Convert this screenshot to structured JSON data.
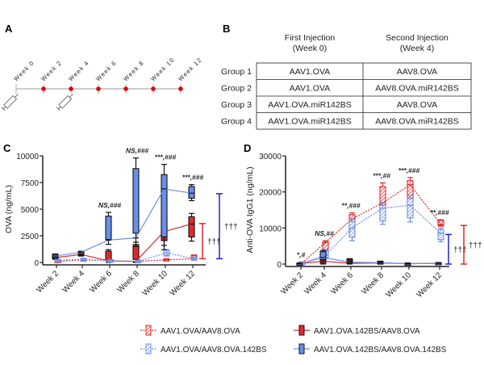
{
  "panels": {
    "a": "A",
    "b": "B",
    "c": "C",
    "d": "D"
  },
  "timeline": {
    "weeks": [
      "Week 0",
      "Week 2",
      "Week 4",
      "Week 6",
      "Week 8",
      "Week 10",
      "Week 12"
    ],
    "injection_weeks": [
      "Week 0",
      "Week 4"
    ],
    "icons": {
      "injection": "syringe-icon",
      "sample": "red-dot"
    }
  },
  "table": {
    "headers": [
      "",
      "First Injection\n(Week 0)",
      "Second Injection\n(Week 4)"
    ],
    "header_lines": [
      [
        "First Injection",
        "(Week 0)"
      ],
      [
        "Second Injection",
        "(Week 4)"
      ]
    ],
    "rows": [
      [
        "Group 1",
        "AAV1.OVA",
        "AAV8.OVA"
      ],
      [
        "Group 2",
        "AAV1.OVA",
        "AAV8.OVA.miR142BS"
      ],
      [
        "Group 3",
        "AAV1.OVA.miR142BS",
        "AAV8.OVA"
      ],
      [
        "Group 4",
        "AAV1.OVA.miR142BS",
        "AAV8.OVA.miR142BS"
      ]
    ]
  },
  "legend": [
    {
      "label": "AAV1.OVA/AAV8.OVA",
      "color": "#e0292e",
      "style": "dotted",
      "box": "hatched"
    },
    {
      "label": "AAV1.OVA.142BS/AAV8.OVA",
      "color": "#e0292e",
      "style": "solid",
      "box": "filled-black-edge"
    },
    {
      "label": "AAV1.OVA/AAV8.OVA.142BS",
      "color": "#6b8fe8",
      "style": "dotted",
      "box": "hatched"
    },
    {
      "label": "AAV1.OVA.142BS/AAV8.OVA.142BS",
      "color": "#6b8fe8",
      "style": "solid",
      "box": "filled-black-edge"
    }
  ],
  "colors": {
    "red": "#e0292e",
    "blue": "#6b8fe8",
    "dark_blue": "#2323c8",
    "black": "#111111"
  },
  "chart_data": [
    {
      "type": "line",
      "panel": "C",
      "ylabel": "OVA (ng/mL)",
      "categories": [
        "Week 2",
        "Week 4",
        "Week 6",
        "Week 8",
        "Week 10",
        "Week 12"
      ],
      "ylim": [
        0,
        10000
      ],
      "yticks": [
        "0",
        "2500",
        "5000",
        "7500",
        "10000"
      ],
      "series": [
        {
          "legend": 0,
          "values": [
            100,
            250,
            150,
            100,
            250,
            350
          ],
          "ranges": [
            [
              0,
              200
            ],
            [
              150,
              350
            ],
            [
              50,
              250
            ],
            [
              0,
              200
            ],
            [
              150,
              350
            ],
            [
              200,
              700
            ]
          ]
        },
        {
          "legend": 1,
          "values": [
            450,
            750,
            150,
            100,
            2900,
            3600
          ],
          "ranges": [
            [
              300,
              600
            ],
            [
              600,
              900
            ],
            [
              0,
              1200
            ],
            [
              0,
              1900
            ],
            [
              1600,
              4600
            ],
            [
              2000,
              4600
            ]
          ]
        },
        {
          "legend": 2,
          "values": [
            200,
            300,
            150,
            100,
            900,
            350
          ],
          "ranges": [
            [
              100,
              300
            ],
            [
              200,
              400
            ],
            [
              50,
              250
            ],
            [
              0,
              200
            ],
            [
              600,
              1200
            ],
            [
              200,
              500
            ]
          ]
        },
        {
          "legend": 3,
          "values": [
            600,
            950,
            2100,
            2300,
            6900,
            6500
          ],
          "ranges": [
            [
              400,
              800
            ],
            [
              750,
              1050
            ],
            [
              1700,
              4700
            ],
            [
              1500,
              9800
            ],
            [
              1200,
              9200
            ],
            [
              5800,
              7300
            ]
          ]
        }
      ],
      "annotations": [
        {
          "category": "Week 6",
          "text": "NS,###"
        },
        {
          "category": "Week 8",
          "text": "NS,###"
        },
        {
          "category": "Week 10",
          "text": "***,###"
        },
        {
          "category": "Week 12",
          "text": "***,###"
        }
      ],
      "brackets": [
        {
          "color": "red",
          "range": [
            350,
            3650
          ],
          "text": "†††"
        },
        {
          "color": "dark_blue",
          "range": [
            350,
            6450
          ],
          "text": "†††"
        }
      ]
    },
    {
      "type": "line",
      "panel": "D",
      "ylabel": "Anti-OVA IgG1 (ng/mL)",
      "categories": [
        "Week 2",
        "Week 4",
        "Week 6",
        "Week 8",
        "Week 10",
        "Week 12"
      ],
      "ylim": [
        0,
        30000
      ],
      "yticks": [
        "0",
        "10000",
        "20000",
        "30000"
      ],
      "series": [
        {
          "legend": 0,
          "values": [
            300,
            6000,
            12500,
            17000,
            22000,
            11000
          ],
          "ranges": [
            [
              0,
              600
            ],
            [
              3500,
              6500
            ],
            [
              10000,
              14200
            ],
            [
              14000,
              22500
            ],
            [
              16700,
              24000
            ],
            [
              10500,
              12300
            ]
          ]
        },
        {
          "legend": 1,
          "values": [
            100,
            800,
            200,
            300,
            100,
            200
          ],
          "ranges": [
            [
              0,
              300
            ],
            [
              0,
              1800
            ],
            [
              0,
              1500
            ],
            [
              0,
              800
            ],
            [
              0,
              300
            ],
            [
              0,
              400
            ]
          ]
        },
        {
          "legend": 2,
          "values": [
            200,
            2500,
            10000,
            15500,
            16300,
            8500
          ],
          "ranges": [
            [
              0,
              400
            ],
            [
              1500,
              4000
            ],
            [
              6500,
              12500
            ],
            [
              11000,
              17000
            ],
            [
              11700,
              19000
            ],
            [
              6200,
              10000
            ]
          ]
        },
        {
          "legend": 3,
          "values": [
            100,
            1800,
            500,
            400,
            100,
            200
          ],
          "ranges": [
            [
              0,
              300
            ],
            [
              800,
              3800
            ],
            [
              200,
              900
            ],
            [
              0,
              700
            ],
            [
              0,
              300
            ],
            [
              0,
              400
            ]
          ]
        }
      ],
      "annotations": [
        {
          "category": "Week 2",
          "text": "*,#"
        },
        {
          "category": "Week 4",
          "text": "NS,##"
        },
        {
          "category": "Week 6",
          "text": "**,###"
        },
        {
          "category": "Week 8",
          "text": "***,##"
        },
        {
          "category": "Week 10",
          "text": "***,###"
        },
        {
          "category": "Week 12",
          "text": "**,###"
        }
      ],
      "brackets": [
        {
          "color": "dark_blue",
          "range": [
            0,
            8200
          ],
          "text": "†††"
        },
        {
          "color": "red",
          "range": [
            0,
            10700
          ],
          "text": "†††"
        }
      ]
    }
  ]
}
